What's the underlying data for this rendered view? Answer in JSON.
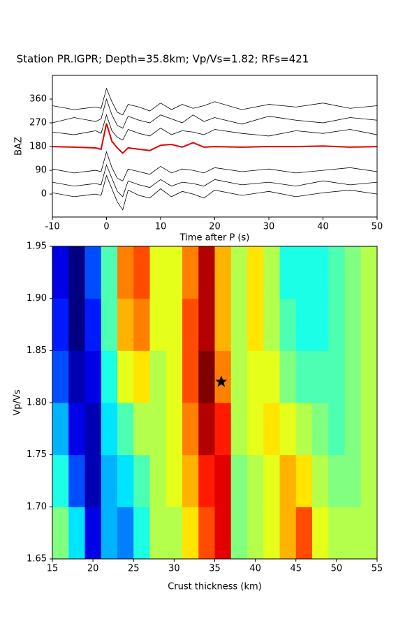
{
  "chart_data": [
    {
      "type": "line",
      "title": "Station PR.IGPR; Depth=35.8km; Vp/Vs=1.82; RFs=421",
      "xlabel": "Time after P (s)",
      "ylabel": "BAZ",
      "x": [
        -10,
        -6,
        -2,
        -1,
        0,
        1,
        2,
        3,
        4,
        6,
        8,
        10,
        12,
        14,
        16,
        18,
        20,
        25,
        30,
        35,
        40,
        45,
        50
      ],
      "series": [
        {
          "color": "#000000",
          "values": [
            335,
            320,
            330,
            325,
            400,
            350,
            310,
            300,
            340,
            330,
            315,
            345,
            320,
            340,
            325,
            335,
            350,
            320,
            340,
            330,
            345,
            325,
            335
          ]
        },
        {
          "color": "#000000",
          "values": [
            270,
            290,
            275,
            285,
            360,
            300,
            260,
            250,
            295,
            280,
            270,
            300,
            285,
            270,
            300,
            275,
            290,
            265,
            295,
            280,
            270,
            290,
            280
          ]
        },
        {
          "color": "#000000",
          "values": [
            235,
            225,
            240,
            230,
            300,
            240,
            215,
            205,
            245,
            230,
            220,
            250,
            225,
            240,
            235,
            225,
            245,
            230,
            220,
            240,
            230,
            245,
            225
          ]
        },
        {
          "color": "#000000",
          "values": [
            95,
            80,
            90,
            85,
            160,
            100,
            60,
            50,
            95,
            85,
            75,
            105,
            80,
            95,
            90,
            80,
            100,
            85,
            95,
            80,
            90,
            100,
            85
          ]
        },
        {
          "color": "#000000",
          "values": [
            45,
            30,
            40,
            35,
            110,
            60,
            10,
            -10,
            50,
            35,
            25,
            55,
            30,
            45,
            40,
            30,
            55,
            35,
            45,
            30,
            50,
            35,
            45
          ]
        },
        {
          "color": "#000000",
          "values": [
            5,
            -10,
            0,
            -5,
            70,
            20,
            -30,
            -60,
            15,
            -5,
            -15,
            20,
            -10,
            10,
            0,
            -15,
            15,
            -5,
            10,
            -10,
            5,
            15,
            0
          ]
        },
        {
          "color": "#e00000",
          "values": [
            180,
            178,
            175,
            170,
            268,
            200,
            175,
            155,
            175,
            170,
            165,
            185,
            188,
            178,
            195,
            178,
            180,
            178,
            180,
            180,
            182,
            178,
            180
          ]
        }
      ],
      "xlim": [
        -10,
        50
      ],
      "xticks": [
        -10,
        0,
        10,
        20,
        30,
        40,
        50
      ],
      "ylim": [
        -87,
        450
      ],
      "yticks": [
        0,
        90,
        180,
        270,
        360
      ]
    },
    {
      "type": "heatmap",
      "xlabel": "Crust thickness (km)",
      "ylabel": "Vp/Vs",
      "colormap": "jet",
      "x_edges": [
        15,
        17,
        19,
        21,
        23,
        25,
        27,
        29,
        31,
        33,
        35,
        37,
        39,
        41,
        43,
        45,
        47,
        49,
        51,
        53,
        55
      ],
      "y_edges": [
        1.65,
        1.7,
        1.75,
        1.8,
        1.85,
        1.9,
        1.95
      ],
      "values": [
        [
          0.5,
          0.35,
          0.1,
          0.3,
          0.25,
          0.4,
          0.55,
          0.55,
          0.65,
          0.8,
          0.9,
          0.5,
          0.55,
          0.6,
          0.7,
          0.8,
          0.6,
          0.55,
          0.55,
          0.55
        ],
        [
          0.4,
          0.2,
          0.05,
          0.3,
          0.35,
          0.45,
          0.55,
          0.6,
          0.7,
          0.85,
          0.9,
          0.5,
          0.55,
          0.6,
          0.7,
          0.65,
          0.55,
          0.5,
          0.5,
          0.55
        ],
        [
          0.3,
          0.1,
          0.05,
          0.35,
          0.45,
          0.55,
          0.55,
          0.6,
          0.75,
          0.95,
          0.85,
          0.55,
          0.6,
          0.65,
          0.6,
          0.55,
          0.5,
          0.45,
          0.5,
          0.55
        ],
        [
          0.2,
          0.05,
          0.1,
          0.4,
          0.6,
          0.65,
          0.55,
          0.6,
          0.8,
          1.0,
          0.75,
          0.55,
          0.6,
          0.6,
          0.5,
          0.45,
          0.45,
          0.45,
          0.5,
          0.55
        ],
        [
          0.15,
          0.0,
          0.15,
          0.45,
          0.7,
          0.75,
          0.6,
          0.6,
          0.8,
          0.95,
          0.7,
          0.55,
          0.65,
          0.55,
          0.45,
          0.4,
          0.4,
          0.45,
          0.5,
          0.55
        ],
        [
          0.1,
          0.0,
          0.2,
          0.45,
          0.75,
          0.8,
          0.6,
          0.6,
          0.75,
          0.95,
          0.7,
          0.55,
          0.65,
          0.55,
          0.4,
          0.4,
          0.4,
          0.45,
          0.5,
          0.55
        ]
      ],
      "marker": {
        "x": 35.8,
        "y": 1.82
      },
      "xlim": [
        15,
        55
      ],
      "xticks": [
        15,
        20,
        25,
        30,
        35,
        40,
        45,
        50,
        55
      ],
      "ylim": [
        1.65,
        1.95
      ],
      "yticks": [
        1.65,
        {
          "value": 1.7,
          "label": "1.70"
        },
        1.75,
        {
          "value": 1.8,
          "label": "1.80"
        },
        1.85,
        {
          "value": 1.9,
          "label": "1.90"
        },
        1.95
      ]
    }
  ]
}
